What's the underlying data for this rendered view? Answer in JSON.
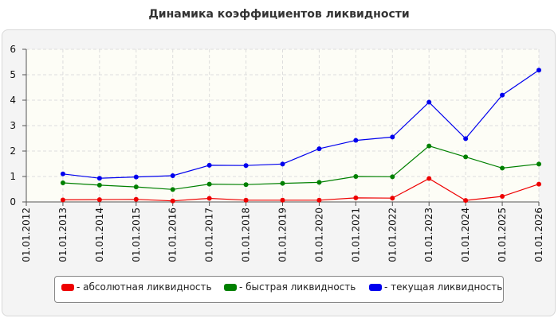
{
  "chart_data": {
    "type": "line",
    "title": "Динамика коэффициентов ликвидности",
    "xlabel": "",
    "ylabel": "",
    "categories": [
      "01.01.2012",
      "01.01.2013",
      "01.01.2014",
      "01.01.2015",
      "01.01.2016",
      "01.01.2017",
      "01.01.2018",
      "01.01.2019",
      "01.01.2020",
      "01.01.2021",
      "01.01.2022",
      "01.01.2023",
      "01.01.2024",
      "01.01.2025",
      "01.01.2026"
    ],
    "ylim": [
      0,
      6
    ],
    "yticks": [
      "0",
      "1",
      "2",
      "3",
      "4",
      "5",
      "6"
    ],
    "grid": true,
    "legend_position": "bottom",
    "series": [
      {
        "name": "- абсолютная ликвидность",
        "color": "#ee0000",
        "values": [
          null,
          0.08,
          0.09,
          0.1,
          0.04,
          0.14,
          0.07,
          0.07,
          0.07,
          0.16,
          0.15,
          0.92,
          0.06,
          0.22,
          0.7
        ]
      },
      {
        "name": "- быстрая ликвидность",
        "color": "#008000",
        "values": [
          null,
          0.75,
          0.66,
          0.59,
          0.49,
          0.7,
          0.68,
          0.73,
          0.77,
          1.0,
          0.99,
          2.2,
          1.77,
          1.33,
          1.49
        ]
      },
      {
        "name": "- текущая ликвидность",
        "color": "#0000ee",
        "values": [
          null,
          1.1,
          0.93,
          0.98,
          1.03,
          1.44,
          1.43,
          1.49,
          2.09,
          2.42,
          2.55,
          3.92,
          2.49,
          4.2,
          5.18
        ]
      }
    ]
  }
}
